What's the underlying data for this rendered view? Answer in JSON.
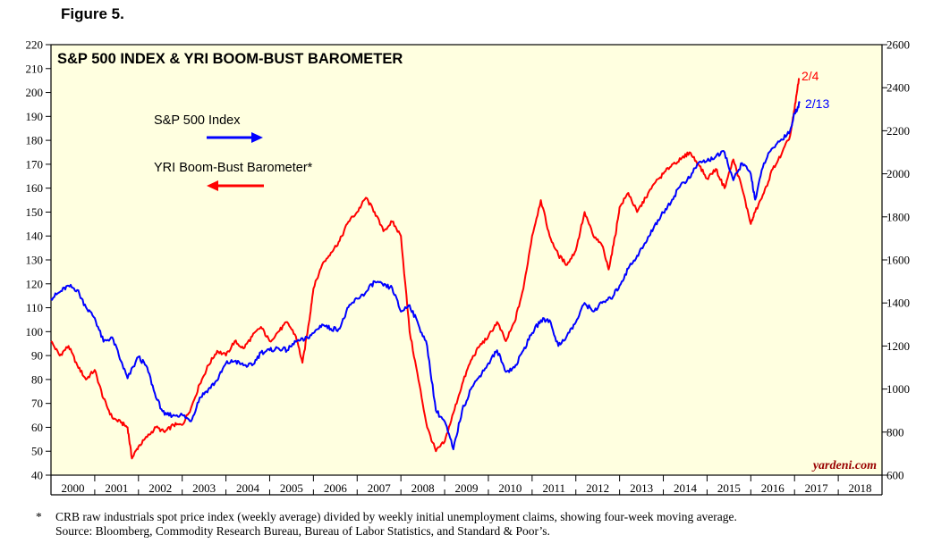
{
  "figure_label": "Figure 5.",
  "footnote": {
    "marker": "*",
    "line1": "CRB raw industrials spot price index (weekly average) divided by weekly initial unemployment claims, showing four-week moving average.",
    "line2": "Source: Bloomberg, Commodity Research Bureau, Bureau of Labor Statistics, and Standard & Poor’s."
  },
  "chart_data": {
    "type": "line",
    "title": "S&P 500 INDEX & YRI BOOM-BUST BAROMETER",
    "watermark": "yardeni.com",
    "colors": {
      "background": "#ffffe0",
      "sp500": "#0000ff",
      "barometer": "#ff0000"
    },
    "x_axis": {
      "min": 2000,
      "max": 2019,
      "tick_labels": [
        "2000",
        "2001",
        "2002",
        "2003",
        "2004",
        "2005",
        "2006",
        "2007",
        "2008",
        "2009",
        "2010",
        "2011",
        "2012",
        "2013",
        "2014",
        "2015",
        "2016",
        "2017",
        "2018"
      ]
    },
    "left_axis": {
      "min": 40,
      "max": 220,
      "tick_labels": [
        "40",
        "50",
        "60",
        "70",
        "80",
        "90",
        "100",
        "110",
        "120",
        "130",
        "140",
        "150",
        "160",
        "170",
        "180",
        "190",
        "200",
        "210",
        "220"
      ]
    },
    "right_axis": {
      "min": 600,
      "max": 2600,
      "tick_labels": [
        "600",
        "800",
        "1000",
        "1200",
        "1400",
        "1600",
        "1800",
        "2000",
        "2200",
        "2400",
        "2600"
      ]
    },
    "legend": [
      {
        "label": "S&P 500 Index",
        "axis": "right",
        "arrow": "right",
        "color": "#0000ff"
      },
      {
        "label": "YRI Boom-Bust Barometer*",
        "axis": "left",
        "arrow": "left",
        "color": "#ff0000"
      }
    ],
    "annotations": [
      {
        "text": "2/4",
        "series": "YRI Boom-Bust Barometer",
        "color": "#ff0000"
      },
      {
        "text": "2/13",
        "series": "S&P 500 Index",
        "color": "#0000ff"
      }
    ],
    "series": [
      {
        "name": "YRI Boom-Bust Barometer",
        "axis": "left",
        "x": [
          2000.0,
          2000.2,
          2000.4,
          2000.6,
          2000.8,
          2001.0,
          2001.2,
          2001.4,
          2001.6,
          2001.75,
          2001.85,
          2002.0,
          2002.2,
          2002.4,
          2002.6,
          2002.8,
          2003.0,
          2003.2,
          2003.4,
          2003.6,
          2003.8,
          2004.0,
          2004.2,
          2004.4,
          2004.6,
          2004.8,
          2005.0,
          2005.2,
          2005.4,
          2005.6,
          2005.75,
          2005.9,
          2006.0,
          2006.2,
          2006.4,
          2006.6,
          2006.8,
          2007.0,
          2007.2,
          2007.4,
          2007.6,
          2007.8,
          2008.0,
          2008.2,
          2008.4,
          2008.6,
          2008.8,
          2009.0,
          2009.2,
          2009.4,
          2009.6,
          2009.8,
          2010.0,
          2010.2,
          2010.4,
          2010.6,
          2010.8,
          2011.0,
          2011.2,
          2011.4,
          2011.6,
          2011.8,
          2012.0,
          2012.2,
          2012.4,
          2012.6,
          2012.75,
          2012.9,
          2013.0,
          2013.2,
          2013.4,
          2013.6,
          2013.8,
          2014.0,
          2014.2,
          2014.4,
          2014.6,
          2014.8,
          2015.0,
          2015.2,
          2015.4,
          2015.6,
          2015.8,
          2016.0,
          2016.1,
          2016.3,
          2016.5,
          2016.7,
          2016.9,
          2017.0,
          2017.1
        ],
        "values": [
          96,
          90,
          94,
          86,
          80,
          84,
          72,
          64,
          62,
          60,
          47,
          52,
          56,
          60,
          58,
          61,
          61,
          68,
          78,
          86,
          92,
          90,
          96,
          93,
          98,
          102,
          96,
          100,
          104,
          98,
          87,
          104,
          118,
          128,
          133,
          138,
          146,
          150,
          156,
          150,
          142,
          146,
          140,
          100,
          80,
          60,
          50,
          54,
          66,
          78,
          88,
          94,
          98,
          104,
          96,
          104,
          118,
          140,
          155,
          140,
          132,
          128,
          134,
          150,
          140,
          136,
          126,
          140,
          152,
          158,
          150,
          156,
          162,
          166,
          170,
          172,
          175,
          170,
          164,
          168,
          160,
          172,
          160,
          145,
          150,
          158,
          168,
          174,
          182,
          193,
          206
        ]
      },
      {
        "name": "S&P 500 Index",
        "axis": "right",
        "x": [
          2000.0,
          2000.2,
          2000.4,
          2000.6,
          2000.8,
          2001.0,
          2001.2,
          2001.4,
          2001.6,
          2001.75,
          2002.0,
          2002.2,
          2002.4,
          2002.6,
          2002.8,
          2003.0,
          2003.2,
          2003.4,
          2003.6,
          2003.8,
          2004.0,
          2004.2,
          2004.4,
          2004.6,
          2004.8,
          2005.0,
          2005.2,
          2005.4,
          2005.6,
          2005.8,
          2006.0,
          2006.2,
          2006.4,
          2006.6,
          2006.8,
          2007.0,
          2007.2,
          2007.4,
          2007.6,
          2007.8,
          2008.0,
          2008.2,
          2008.4,
          2008.6,
          2008.8,
          2009.0,
          2009.2,
          2009.4,
          2009.6,
          2009.8,
          2010.0,
          2010.2,
          2010.4,
          2010.6,
          2010.8,
          2011.0,
          2011.2,
          2011.4,
          2011.6,
          2011.8,
          2012.0,
          2012.2,
          2012.4,
          2012.6,
          2012.8,
          2013.0,
          2013.2,
          2013.4,
          2013.6,
          2013.8,
          2014.0,
          2014.2,
          2014.4,
          2014.6,
          2014.8,
          2015.0,
          2015.2,
          2015.4,
          2015.6,
          2015.8,
          2016.0,
          2016.1,
          2016.3,
          2016.5,
          2016.7,
          2016.9,
          2017.0,
          2017.12
        ],
        "values": [
          1420,
          1450,
          1480,
          1460,
          1380,
          1330,
          1220,
          1240,
          1130,
          1050,
          1150,
          1100,
          960,
          880,
          880,
          880,
          850,
          960,
          1000,
          1040,
          1120,
          1130,
          1110,
          1110,
          1170,
          1180,
          1190,
          1180,
          1220,
          1230,
          1260,
          1300,
          1280,
          1280,
          1380,
          1420,
          1450,
          1500,
          1480,
          1470,
          1360,
          1390,
          1300,
          1200,
          900,
          850,
          720,
          900,
          1000,
          1060,
          1120,
          1180,
          1080,
          1100,
          1180,
          1260,
          1320,
          1320,
          1200,
          1250,
          1310,
          1400,
          1360,
          1400,
          1420,
          1480,
          1560,
          1620,
          1680,
          1760,
          1820,
          1880,
          1950,
          1980,
          2050,
          2060,
          2080,
          2100,
          1970,
          2050,
          2000,
          1880,
          2050,
          2120,
          2160,
          2200,
          2280,
          2330
        ]
      }
    ]
  }
}
